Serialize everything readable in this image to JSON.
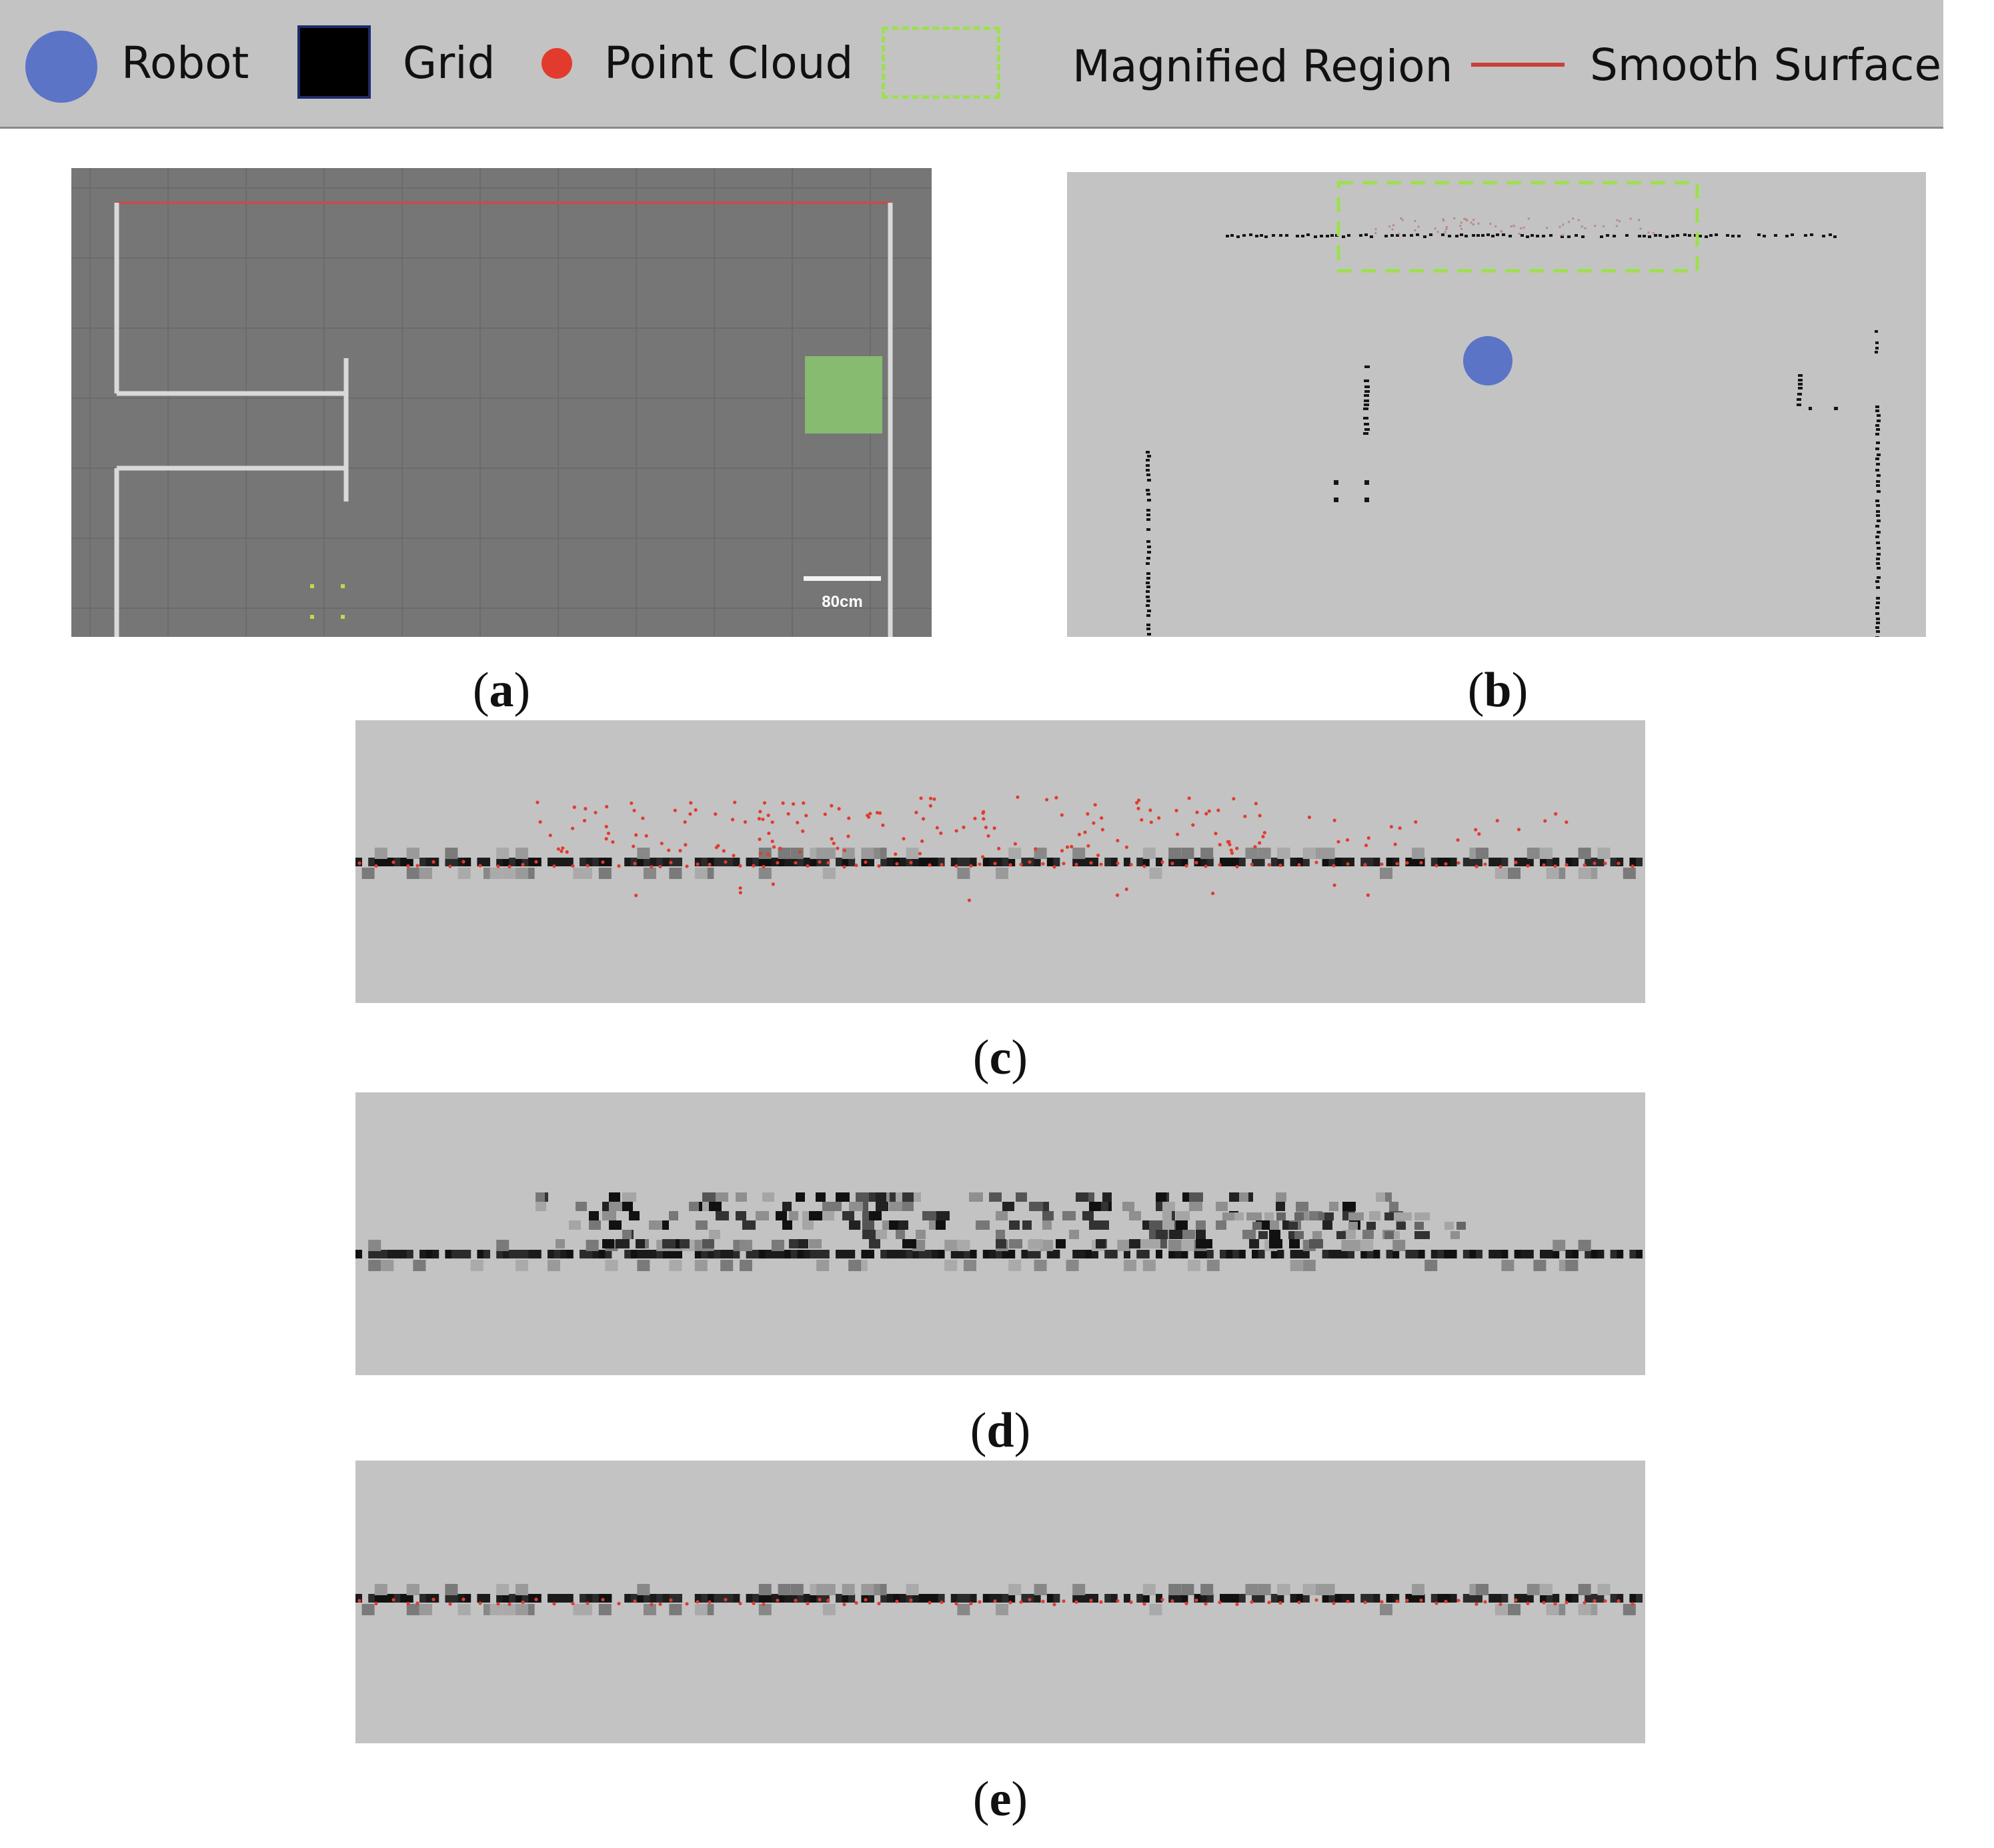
{
  "legend": {
    "robot_label": "Robot",
    "grid_label": "Grid",
    "point_cloud_label": "Point Cloud",
    "magnified_label": "Magnified Region",
    "smooth_label": "Smooth Surface",
    "colors": {
      "robot": "#5b74c6",
      "grid": "#000000",
      "point_cloud": "#e23b2d",
      "magnified": "#9de04f",
      "smooth": "#c8403a"
    }
  },
  "panel_a": {
    "scale_label": "80cm",
    "caption": "a",
    "colors": {
      "background": "#767676",
      "walls": "#d9d9d9",
      "goal": "#87bb6f",
      "top_edge": "#c0504d"
    }
  },
  "panel_b": {
    "caption": "b",
    "background": "#c3c3c3"
  },
  "panel_c": {
    "caption": "c"
  },
  "panel_d": {
    "caption": "d"
  },
  "panel_e": {
    "caption": "e"
  }
}
